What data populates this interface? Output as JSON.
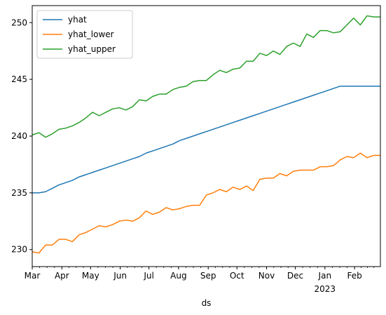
{
  "chart_data": {
    "type": "line",
    "title": "",
    "xlabel": "ds",
    "ylabel": "",
    "xlim": [
      "2022-03-01",
      "2023-02-28"
    ],
    "ylim": [
      228.5,
      251.5
    ],
    "grid": false,
    "legend": "upper left",
    "x_ticks": [
      {
        "date": "2022-03-01",
        "label": "Mar"
      },
      {
        "date": "2022-04-01",
        "label": "Apr"
      },
      {
        "date": "2022-05-01",
        "label": "May"
      },
      {
        "date": "2022-06-01",
        "label": "Jun"
      },
      {
        "date": "2022-07-01",
        "label": "Jul"
      },
      {
        "date": "2022-08-01",
        "label": "Aug"
      },
      {
        "date": "2022-09-01",
        "label": "Sep"
      },
      {
        "date": "2022-10-01",
        "label": "Oct"
      },
      {
        "date": "2022-11-01",
        "label": "Nov"
      },
      {
        "date": "2022-12-01",
        "label": "Dec"
      },
      {
        "date": "2023-01-01",
        "label": "Jan",
        "sublabel": "2023"
      },
      {
        "date": "2023-02-01",
        "label": "Feb"
      }
    ],
    "y_ticks": [
      230,
      235,
      240,
      245,
      250
    ],
    "x": [
      "2022-03-01",
      "2022-03-08",
      "2022-03-15",
      "2022-03-22",
      "2022-03-29",
      "2022-04-05",
      "2022-04-12",
      "2022-04-19",
      "2022-04-26",
      "2022-05-03",
      "2022-05-10",
      "2022-05-17",
      "2022-05-24",
      "2022-05-31",
      "2022-06-07",
      "2022-06-14",
      "2022-06-21",
      "2022-06-28",
      "2022-07-05",
      "2022-07-12",
      "2022-07-19",
      "2022-07-26",
      "2022-08-02",
      "2022-08-09",
      "2022-08-16",
      "2022-08-23",
      "2022-08-30",
      "2022-09-06",
      "2022-09-13",
      "2022-09-20",
      "2022-09-27",
      "2022-10-04",
      "2022-10-11",
      "2022-10-18",
      "2022-10-25",
      "2022-11-01",
      "2022-11-08",
      "2022-11-15",
      "2022-11-22",
      "2022-11-29",
      "2022-12-06",
      "2022-12-13",
      "2022-12-20",
      "2022-12-27",
      "2023-01-03",
      "2023-01-10",
      "2023-01-17",
      "2023-01-24",
      "2023-01-31",
      "2023-02-07",
      "2023-02-14",
      "2023-02-21",
      "2023-02-28"
    ],
    "series": [
      {
        "name": "yhat",
        "color": "#1f77b4",
        "values": [
          235.0,
          235.0,
          235.1,
          235.4,
          235.7,
          235.9,
          236.1,
          236.4,
          236.6,
          236.8,
          237.0,
          237.2,
          237.4,
          237.6,
          237.8,
          238.0,
          238.2,
          238.5,
          238.7,
          238.9,
          239.1,
          239.3,
          239.6,
          239.8,
          240.0,
          240.2,
          240.4,
          240.6,
          240.8,
          241.0,
          241.2,
          241.4,
          241.6,
          241.8,
          242.0,
          242.2,
          242.4,
          242.6,
          242.8,
          243.0,
          243.2,
          243.4,
          243.6,
          243.8,
          244.0,
          244.2,
          244.4,
          244.4,
          244.4,
          244.4,
          244.4,
          244.4,
          244.4
        ]
      },
      {
        "name": "yhat_lower",
        "color": "#ff7f0e",
        "values": [
          229.8,
          229.7,
          230.4,
          230.4,
          230.9,
          230.9,
          230.7,
          231.3,
          231.5,
          231.8,
          232.1,
          232.0,
          232.2,
          232.5,
          232.6,
          232.5,
          232.8,
          233.4,
          233.1,
          233.3,
          233.7,
          233.5,
          233.6,
          233.8,
          233.9,
          233.9,
          234.8,
          235.0,
          235.3,
          235.1,
          235.5,
          235.3,
          235.6,
          235.2,
          236.2,
          236.3,
          236.3,
          236.7,
          236.5,
          236.9,
          237.0,
          237.0,
          237.0,
          237.3,
          237.3,
          237.4,
          237.9,
          238.2,
          238.1,
          238.5,
          238.1,
          238.3,
          238.3
        ]
      },
      {
        "name": "yhat_upper",
        "color": "#2ca02c",
        "values": [
          240.1,
          240.3,
          239.9,
          240.2,
          240.6,
          240.7,
          240.9,
          241.2,
          241.6,
          242.1,
          241.8,
          242.1,
          242.4,
          242.5,
          242.3,
          242.6,
          243.2,
          243.1,
          243.5,
          243.7,
          243.7,
          244.1,
          244.3,
          244.4,
          244.8,
          244.9,
          244.9,
          245.4,
          245.8,
          245.6,
          245.9,
          246.0,
          246.6,
          246.6,
          247.3,
          247.1,
          247.5,
          247.2,
          247.9,
          248.2,
          247.9,
          249.0,
          248.7,
          249.3,
          249.3,
          249.1,
          249.2,
          249.8,
          250.4,
          249.8,
          250.6,
          250.5,
          250.5
        ]
      }
    ]
  }
}
